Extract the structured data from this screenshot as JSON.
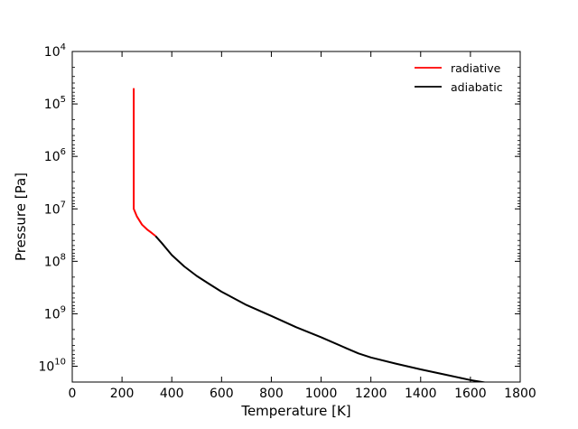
{
  "chart_data": {
    "type": "line",
    "xlabel": "Temperature [K]",
    "ylabel": "Pressure [Pa]",
    "xlim": [
      0,
      1800
    ],
    "ylim": [
      10000,
      20000000000
    ],
    "y_scale": "log",
    "y_inverted": true,
    "x_ticks": [
      0,
      200,
      400,
      600,
      800,
      1000,
      1200,
      1400,
      1600,
      1800
    ],
    "y_ticks": [
      {
        "value": 10000,
        "base": "10",
        "exp": "4"
      },
      {
        "value": 100000,
        "base": "10",
        "exp": "5"
      },
      {
        "value": 1000000,
        "base": "10",
        "exp": "6"
      },
      {
        "value": 10000000,
        "base": "10",
        "exp": "7"
      },
      {
        "value": 100000000,
        "base": "10",
        "exp": "8"
      },
      {
        "value": 1000000000,
        "base": "10",
        "exp": "9"
      },
      {
        "value": 10000000000,
        "base": "10",
        "exp": "10"
      }
    ],
    "grid": false,
    "legend_position": "top-right",
    "series": [
      {
        "name": "radiative",
        "color": "#ff0000",
        "x": [
          247,
          247,
          247,
          260,
          280,
          300,
          320,
          335
        ],
        "y": [
          50000,
          1000000,
          10000000,
          14000000,
          20000000,
          24500000,
          29000000,
          33000000
        ]
      },
      {
        "name": "adiabatic",
        "color": "#000000",
        "x": [
          335,
          360,
          400,
          450,
          500,
          550,
          600,
          700,
          800,
          900,
          1000,
          1100,
          1150,
          1200,
          1300,
          1400,
          1500,
          1600,
          1700,
          1750
        ],
        "y": [
          33000000,
          45000000,
          76000000,
          125000000,
          190000000,
          270000000,
          380000000,
          680000000,
          1100000000,
          1800000000,
          2800000000,
          4500000000,
          5700000000,
          6800000000,
          8900000000,
          11500000000,
          14500000000,
          18300000000,
          22000000000,
          25000000000
        ]
      }
    ]
  }
}
